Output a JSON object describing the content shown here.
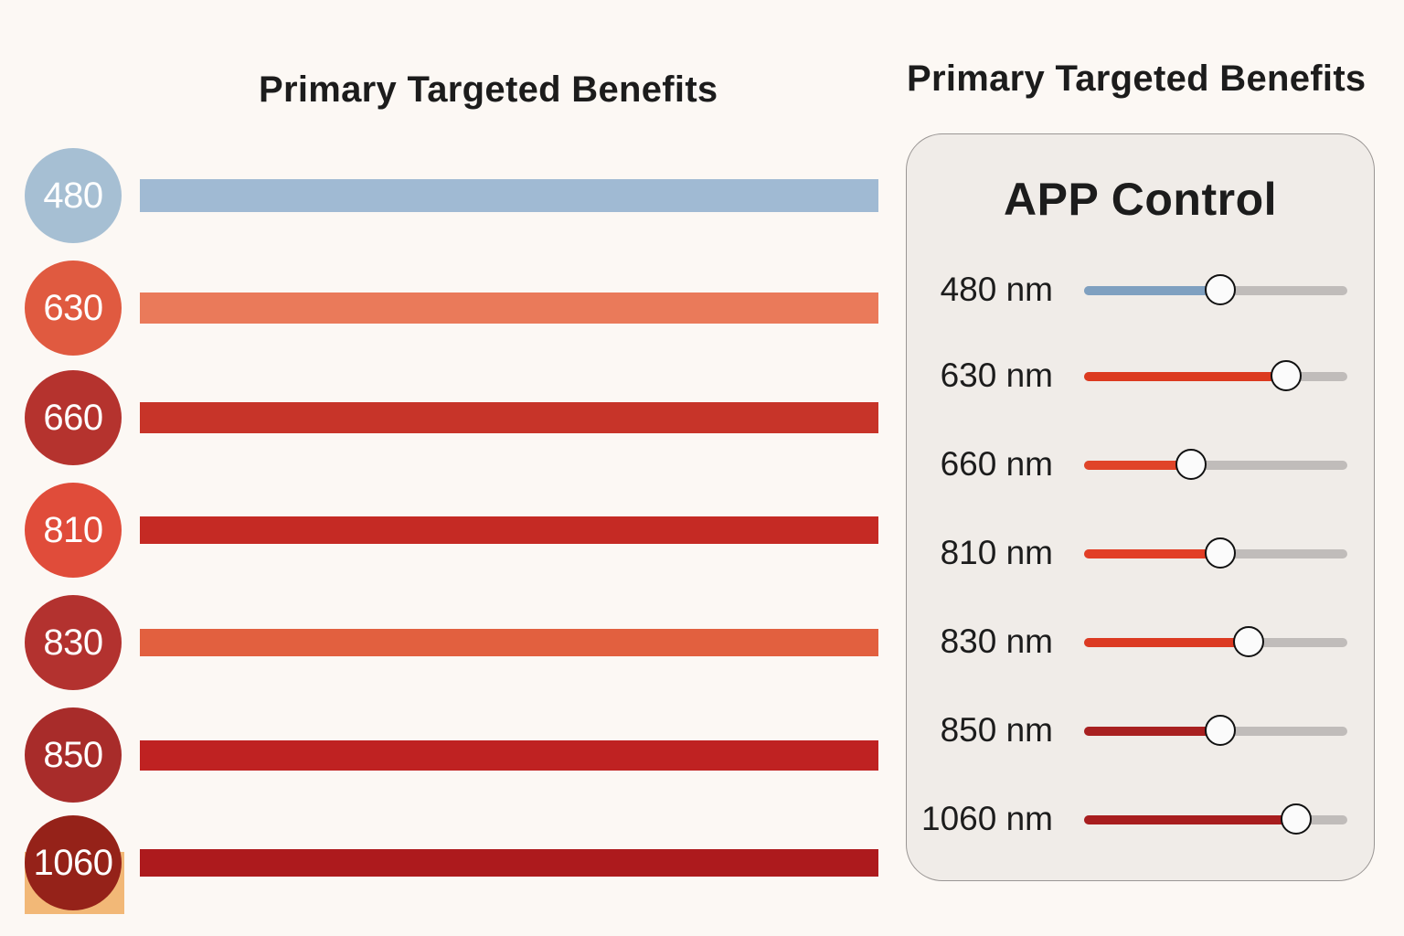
{
  "left": {
    "title": "Primary Targeted Benefits",
    "items": [
      {
        "label": "480",
        "circle_color": "#a6bfd3",
        "bar_color": "#a0bad3"
      },
      {
        "label": "630",
        "circle_color": "#e05a40",
        "bar_color": "#ea7a5a"
      },
      {
        "label": "660",
        "circle_color": "#b5332e",
        "bar_color": "#c73429"
      },
      {
        "label": "810",
        "circle_color": "#e04c3a",
        "bar_color": "#c52a24"
      },
      {
        "label": "830",
        "circle_color": "#b3322f",
        "bar_color": "#e2603f"
      },
      {
        "label": "850",
        "circle_color": "#a82c2a",
        "bar_color": "#bf2222"
      },
      {
        "label": "1060",
        "circle_color": "#952219",
        "bar_color": "#ad1a1d"
      }
    ]
  },
  "right": {
    "title": "Primary Targeted Benefits",
    "panel_title": "APP Control",
    "sliders": [
      {
        "label": "480 nm",
        "value": 0.52,
        "color": "#7fa0c0"
      },
      {
        "label": "630 nm",
        "value": 0.77,
        "color": "#dc3a1f"
      },
      {
        "label": "660 nm",
        "value": 0.41,
        "color": "#e04428"
      },
      {
        "label": "810 nm",
        "value": 0.52,
        "color": "#e23e26"
      },
      {
        "label": "830 nm",
        "value": 0.63,
        "color": "#dc3a22"
      },
      {
        "label": "850 nm",
        "value": 0.52,
        "color": "#a82020"
      },
      {
        "label": "1060 nm",
        "value": 0.81,
        "color": "#a81d1e"
      }
    ]
  }
}
